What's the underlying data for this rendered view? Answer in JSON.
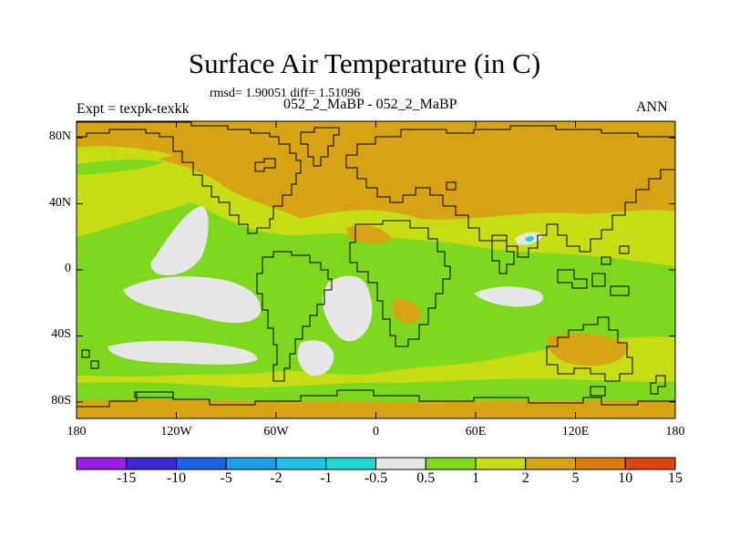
{
  "figure": {
    "title": "Surface Air Temperature (in C)",
    "stats_text": "rmsd= 1.90051 diff= 1.51096",
    "experiment_text": "Expt = texpk-texkk",
    "runs_text": "052_2_MaBP - 052_2_MaBP",
    "period_text": "ANN"
  },
  "map": {
    "projection": "cylindrical equidistant",
    "lon_range": [
      -180,
      180
    ],
    "lat_range": [
      -90,
      90
    ],
    "lon_ticks": [
      {
        "value": -180,
        "label": "180"
      },
      {
        "value": -120,
        "label": "120W"
      },
      {
        "value": -60,
        "label": "60W"
      },
      {
        "value": 0,
        "label": "0"
      },
      {
        "value": 60,
        "label": "60E"
      },
      {
        "value": 120,
        "label": "120E"
      },
      {
        "value": 180,
        "label": "180"
      }
    ],
    "lat_ticks": [
      {
        "value": 80,
        "label": "80N"
      },
      {
        "value": 40,
        "label": "40N"
      },
      {
        "value": 0,
        "label": "0"
      },
      {
        "value": -40,
        "label": "40S"
      },
      {
        "value": -80,
        "label": "80S"
      }
    ],
    "background_color": "#d8a314",
    "coastline_color": "#000000"
  },
  "colorbar": {
    "colors": [
      "#9a1ee6",
      "#3b2bd6",
      "#1e62e6",
      "#1e9ce8",
      "#1ec3e8",
      "#1ed6d0",
      "#e6e6e6",
      "#7ed81e",
      "#c8dc14",
      "#d8a314",
      "#e07a12",
      "#e04412"
    ],
    "labels": [
      "-15",
      "-10",
      "-5",
      "-2",
      "-1",
      "-0.5",
      "0.5",
      "1",
      "2",
      "5",
      "10",
      "15"
    ]
  }
}
